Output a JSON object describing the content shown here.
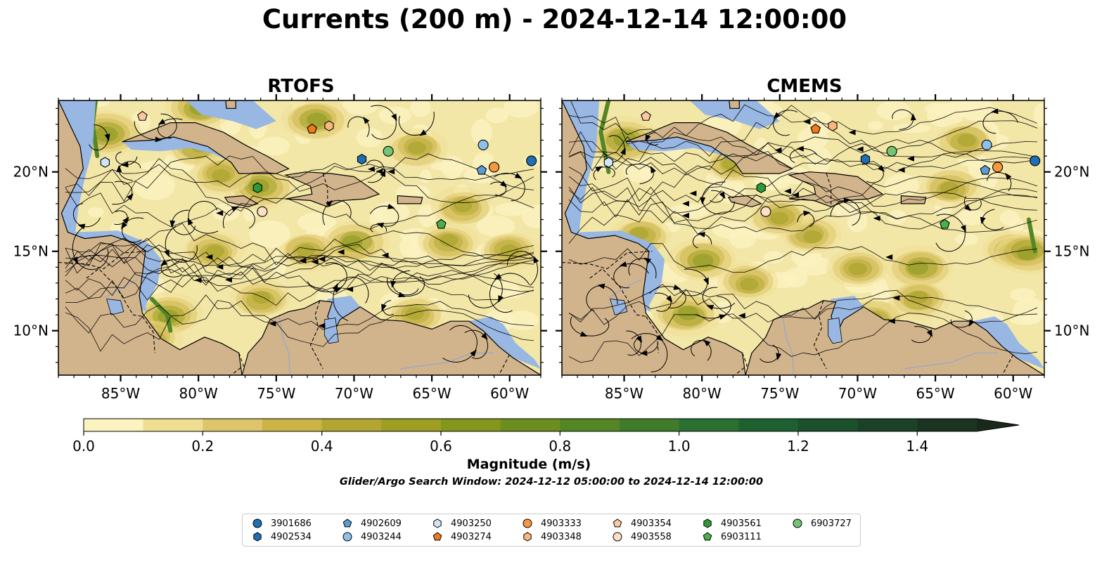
{
  "figure": {
    "title": "Currents (200 m) - 2024-12-14 12:00:00",
    "search_window": "Glider/Argo Search Window: 2024-12-12 05:00:00 to 2024-12-14 12:00:00"
  },
  "panels": [
    {
      "title": "RTOFS"
    },
    {
      "title": "CMEMS"
    }
  ],
  "map_extent": {
    "lon_min": -89,
    "lon_max": -58,
    "lat_min": 7.2,
    "lat_max": 24.5
  },
  "axes": {
    "lon_ticks": [
      "85°W",
      "80°W",
      "75°W",
      "70°W",
      "65°W",
      "60°W"
    ],
    "lon_values": [
      -85,
      -80,
      -75,
      -70,
      -65,
      -60
    ],
    "lat_ticks": [
      "20°N",
      "15°N",
      "10°N"
    ],
    "lat_values": [
      20,
      15,
      10
    ]
  },
  "colorbar": {
    "label": "Magnitude (m/s)",
    "range": [
      0,
      1.5
    ],
    "extend": "max",
    "ticks": [
      "0.0",
      "0.2",
      "0.4",
      "0.6",
      "0.8",
      "1.0",
      "1.2",
      "1.4"
    ],
    "tick_values": [
      0.0,
      0.2,
      0.4,
      0.6,
      0.8,
      1.0,
      1.2,
      1.4
    ],
    "colors": [
      "#fbf3c0",
      "#efdd92",
      "#dcc56a",
      "#cab445",
      "#b3a532",
      "#9d9e22",
      "#84961b",
      "#6c8e1f",
      "#548626",
      "#3e7c2a",
      "#2a7031",
      "#1d6131",
      "#1b502c",
      "#1b4226",
      "#1b3421",
      "#18291a"
    ]
  },
  "colors": {
    "land": "#d2b48c",
    "shallow": "#98b7e2",
    "ocean_base": "#f3e7a8"
  },
  "legend": [
    {
      "id": "3901686",
      "marker": "circle",
      "color": "#1f6fb4"
    },
    {
      "id": "4902534",
      "marker": "hexagon",
      "color": "#1f6fb4"
    },
    {
      "id": "4902609",
      "marker": "pentagon",
      "color": "#5d9bd6"
    },
    {
      "id": "4903244",
      "marker": "circle",
      "color": "#8fc0ea"
    },
    {
      "id": "4903250",
      "marker": "hexagon",
      "color": "#cfe6f7"
    },
    {
      "id": "4903274",
      "marker": "pentagon",
      "color": "#f17a1a"
    },
    {
      "id": "4903333",
      "marker": "circle",
      "color": "#f6993f"
    },
    {
      "id": "4903348",
      "marker": "hexagon",
      "color": "#f9b77c"
    },
    {
      "id": "4903354",
      "marker": "pentagon",
      "color": "#fbc9a0"
    },
    {
      "id": "4903558",
      "marker": "circle",
      "color": "#fde0c6"
    },
    {
      "id": "4903561",
      "marker": "hexagon",
      "color": "#2f9a35"
    },
    {
      "id": "6903111",
      "marker": "pentagon",
      "color": "#49b04a"
    },
    {
      "id": "6903727",
      "marker": "circle",
      "color": "#74c476"
    }
  ],
  "floats": [
    {
      "id": "3901686",
      "lon": -58.6,
      "lat": 20.7
    },
    {
      "id": "4902534",
      "lon": -69.5,
      "lat": 20.8
    },
    {
      "id": "4902609",
      "lon": -61.8,
      "lat": 20.1
    },
    {
      "id": "4903244",
      "lon": -61.7,
      "lat": 21.7
    },
    {
      "id": "4903250",
      "lon": -86.0,
      "lat": 20.6
    },
    {
      "id": "4903274",
      "lon": -72.7,
      "lat": 22.7
    },
    {
      "id": "4903333",
      "lon": -61.0,
      "lat": 20.3
    },
    {
      "id": "4903348",
      "lon": -71.6,
      "lat": 22.9
    },
    {
      "id": "4903354",
      "lon": -83.6,
      "lat": 23.5
    },
    {
      "id": "4903558",
      "lon": -75.9,
      "lat": 17.5
    },
    {
      "id": "4903561",
      "lon": -76.2,
      "lat": 19.0
    },
    {
      "id": "6903111",
      "lon": -64.4,
      "lat": 16.7
    },
    {
      "id": "6903727",
      "lon": -67.8,
      "lat": 21.3
    }
  ]
}
